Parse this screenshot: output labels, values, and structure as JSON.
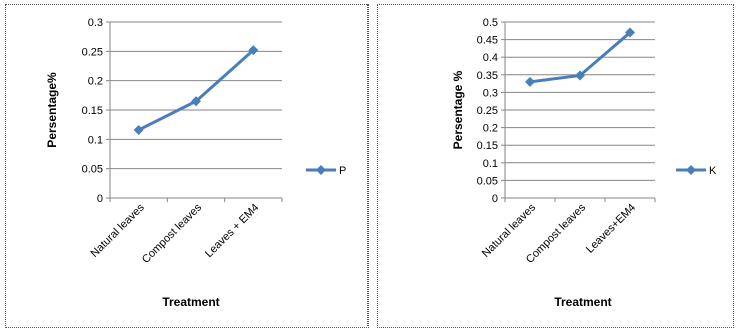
{
  "colors": {
    "series": "#4a7ebb",
    "grid": "#868686",
    "axis": "#868686"
  },
  "chart_data": [
    {
      "type": "line",
      "categories": [
        "Natural leaves",
        "Compost leaves",
        "Leaves + EM4"
      ],
      "series": [
        {
          "name": "P",
          "values": [
            0.116,
            0.165,
            0.252
          ]
        }
      ],
      "xlabel": "Treatment",
      "ylabel": "Persentage%",
      "ylim": [
        0,
        0.3
      ],
      "yticks": [
        "0",
        "0.05",
        "0.1",
        "0.15",
        "0.2",
        "0.25",
        "0.3"
      ],
      "grid": true,
      "legend": "right"
    },
    {
      "type": "line",
      "categories": [
        "Natural leaves",
        "Compost leaves",
        "Leaves+EM4"
      ],
      "series": [
        {
          "name": "K",
          "values": [
            0.33,
            0.348,
            0.47
          ]
        }
      ],
      "xlabel": "Treatment",
      "ylabel": "Persentage %",
      "ylim": [
        0,
        0.5
      ],
      "yticks": [
        "0",
        "0.05",
        "0.1",
        "0.15",
        "0.2",
        "0.25",
        "0.3",
        "0.35",
        "0.4",
        "0.45",
        "0.5"
      ],
      "grid": true,
      "legend": "right"
    }
  ]
}
